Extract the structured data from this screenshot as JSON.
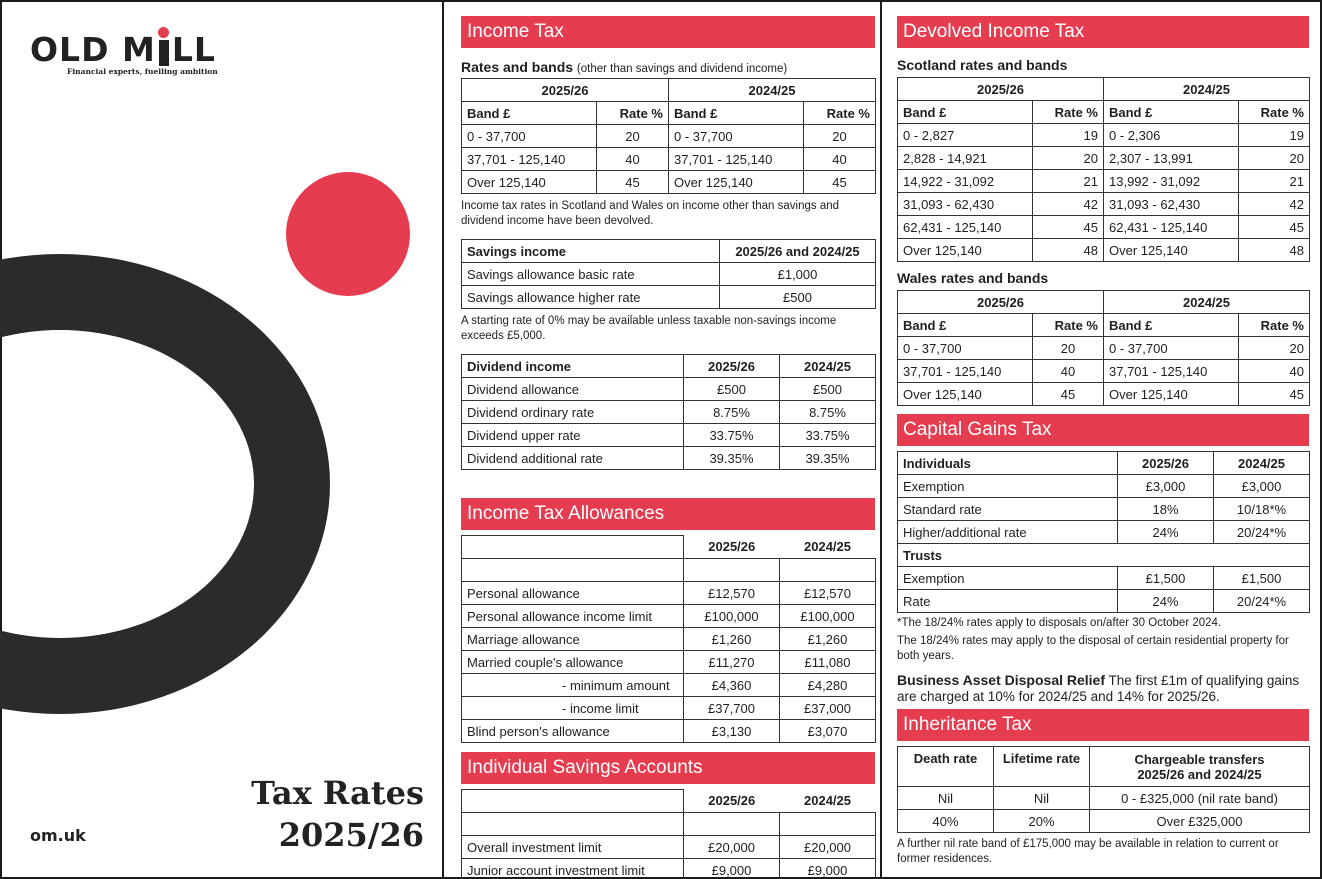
{
  "cover": {
    "logo_left": "OLD M",
    "logo_right": "LL",
    "tagline": "Financial experts, fuelling ambition",
    "title_line1": "Tax Rates",
    "title_line2": "2025/26",
    "site": "om.uk",
    "accent_color": "#e63c50"
  },
  "income_tax": {
    "heading": "Income Tax",
    "rates_title": "Rates and bands",
    "rates_subtitle": "(other than savings and dividend income)",
    "year_a": "2025/26",
    "year_b": "2024/25",
    "col_band": "Band £",
    "col_rate": "Rate %",
    "rows": [
      {
        "band_a": "0 - 37,700",
        "rate_a": "20",
        "band_b": "0 - 37,700",
        "rate_b": "20"
      },
      {
        "band_a": "37,701 - 125,140",
        "rate_a": "40",
        "band_b": "37,701 - 125,140",
        "rate_b": "40"
      },
      {
        "band_a": "Over 125,140",
        "rate_a": "45",
        "band_b": "Over 125,140",
        "rate_b": "45"
      }
    ],
    "devolved_note": "Income tax rates in Scotland and Wales on income other than savings and dividend income have been devolved.",
    "savings": {
      "header_label": "Savings income",
      "header_years": "2025/26 and 2024/25",
      "rows": [
        {
          "label": "Savings allowance basic rate",
          "value": "£1,000"
        },
        {
          "label": "Savings allowance higher rate",
          "value": "£500"
        }
      ],
      "note": "A starting rate of 0% may be available unless taxable non-savings income exceeds £5,000."
    },
    "dividend": {
      "header_label": "Dividend income",
      "year_a": "2025/26",
      "year_b": "2024/25",
      "rows": [
        {
          "label": "Dividend allowance",
          "a": "£500",
          "b": "£500"
        },
        {
          "label": "Dividend ordinary rate",
          "a": "8.75%",
          "b": "8.75%"
        },
        {
          "label": "Dividend upper rate",
          "a": "33.75%",
          "b": "33.75%"
        },
        {
          "label": "Dividend additional rate",
          "a": "39.35%",
          "b": "39.35%"
        }
      ]
    }
  },
  "allowances": {
    "heading": "Income Tax Allowances",
    "year_a": "2025/26",
    "year_b": "2024/25",
    "rows": [
      {
        "label": "Personal allowance",
        "a": "£12,570",
        "b": "£12,570"
      },
      {
        "label": "Personal allowance income limit",
        "a": "£100,000",
        "b": "£100,000"
      },
      {
        "label": "Marriage allowance",
        "a": "£1,260",
        "b": "£1,260"
      },
      {
        "label": "Married couple's allowance",
        "a": "£11,270",
        "b": "£11,080"
      },
      {
        "label": "- minimum amount",
        "a": "£4,360",
        "b": "£4,280"
      },
      {
        "label": "- income limit",
        "a": "£37,700",
        "b": "£37,000"
      },
      {
        "label": "Blind person's allowance",
        "a": "£3,130",
        "b": "£3,070"
      }
    ]
  },
  "isa": {
    "heading": "Individual Savings Accounts",
    "year_a": "2025/26",
    "year_b": "2024/25",
    "rows": [
      {
        "label": "Overall investment limit",
        "a": "£20,000",
        "b": "£20,000"
      },
      {
        "label": "Junior account investment limit",
        "a": "£9,000",
        "b": "£9,000"
      }
    ]
  },
  "devolved": {
    "heading": "Devolved Income Tax",
    "scotland_title": "Scotland rates and bands",
    "wales_title": "Wales rates and bands",
    "year_a": "2025/26",
    "year_b": "2024/25",
    "col_band": "Band £",
    "col_rate": "Rate %",
    "scotland_rows": [
      {
        "band_a": "0 - 2,827",
        "rate_a": "19",
        "band_b": "0 - 2,306",
        "rate_b": "19"
      },
      {
        "band_a": "2,828 - 14,921",
        "rate_a": "20",
        "band_b": "2,307 - 13,991",
        "rate_b": "20"
      },
      {
        "band_a": "14,922 - 31,092",
        "rate_a": "21",
        "band_b": "13,992 - 31,092",
        "rate_b": "21"
      },
      {
        "band_a": "31,093 - 62,430",
        "rate_a": "42",
        "band_b": "31,093 - 62,430",
        "rate_b": "42"
      },
      {
        "band_a": "62,431 - 125,140",
        "rate_a": "45",
        "band_b": "62,431 - 125,140",
        "rate_b": "45"
      },
      {
        "band_a": "Over 125,140",
        "rate_a": "48",
        "band_b": "Over 125,140",
        "rate_b": "48"
      }
    ],
    "wales_rows": [
      {
        "band_a": "0 - 37,700",
        "rate_a": "20",
        "band_b": "0 - 37,700",
        "rate_b": "20"
      },
      {
        "band_a": "37,701 - 125,140",
        "rate_a": "40",
        "band_b": "37,701 - 125,140",
        "rate_b": "40"
      },
      {
        "band_a": "Over 125,140",
        "rate_a": "45",
        "band_b": "Over 125,140",
        "rate_b": "45"
      }
    ]
  },
  "cgt": {
    "heading": "Capital Gains Tax",
    "individuals_label": "Individuals",
    "trusts_label": "Trusts",
    "year_a": "2025/26",
    "year_b": "2024/25",
    "individual_rows": [
      {
        "label": "Exemption",
        "a": "£3,000",
        "b": "£3,000"
      },
      {
        "label": "Standard rate",
        "a": "18%",
        "b": "10/18*%"
      },
      {
        "label": "Higher/additional rate",
        "a": "24%",
        "b": "20/24*%"
      }
    ],
    "trust_rows": [
      {
        "label": "Exemption",
        "a": "£1,500",
        "b": "£1,500"
      },
      {
        "label": "Rate",
        "a": "24%",
        "b": "20/24*%"
      }
    ],
    "note1": "*The 18/24% rates apply to disposals on/after 30 October 2024.",
    "note2": "The 18/24% rates may apply to the disposal of certain residential property for both years.",
    "badr_title": "Business Asset Disposal Relief",
    "badr_text": " The first £1m of qualifying gains are charged at 10% for 2024/25 and 14% for 2025/26."
  },
  "iht": {
    "heading": "Inheritance Tax",
    "col_death": "Death rate",
    "col_lifetime": "Lifetime rate",
    "col_transfers": "Chargeable transfers 2025/26 and 2024/25",
    "rows": [
      {
        "death": "Nil",
        "lifetime": "Nil",
        "transfers": "0 - £325,000 (nil rate band)"
      },
      {
        "death": "40%",
        "lifetime": "20%",
        "transfers": "Over £325,000"
      }
    ],
    "note": "A further nil rate band of £175,000 may be available in relation to current or former residences."
  }
}
